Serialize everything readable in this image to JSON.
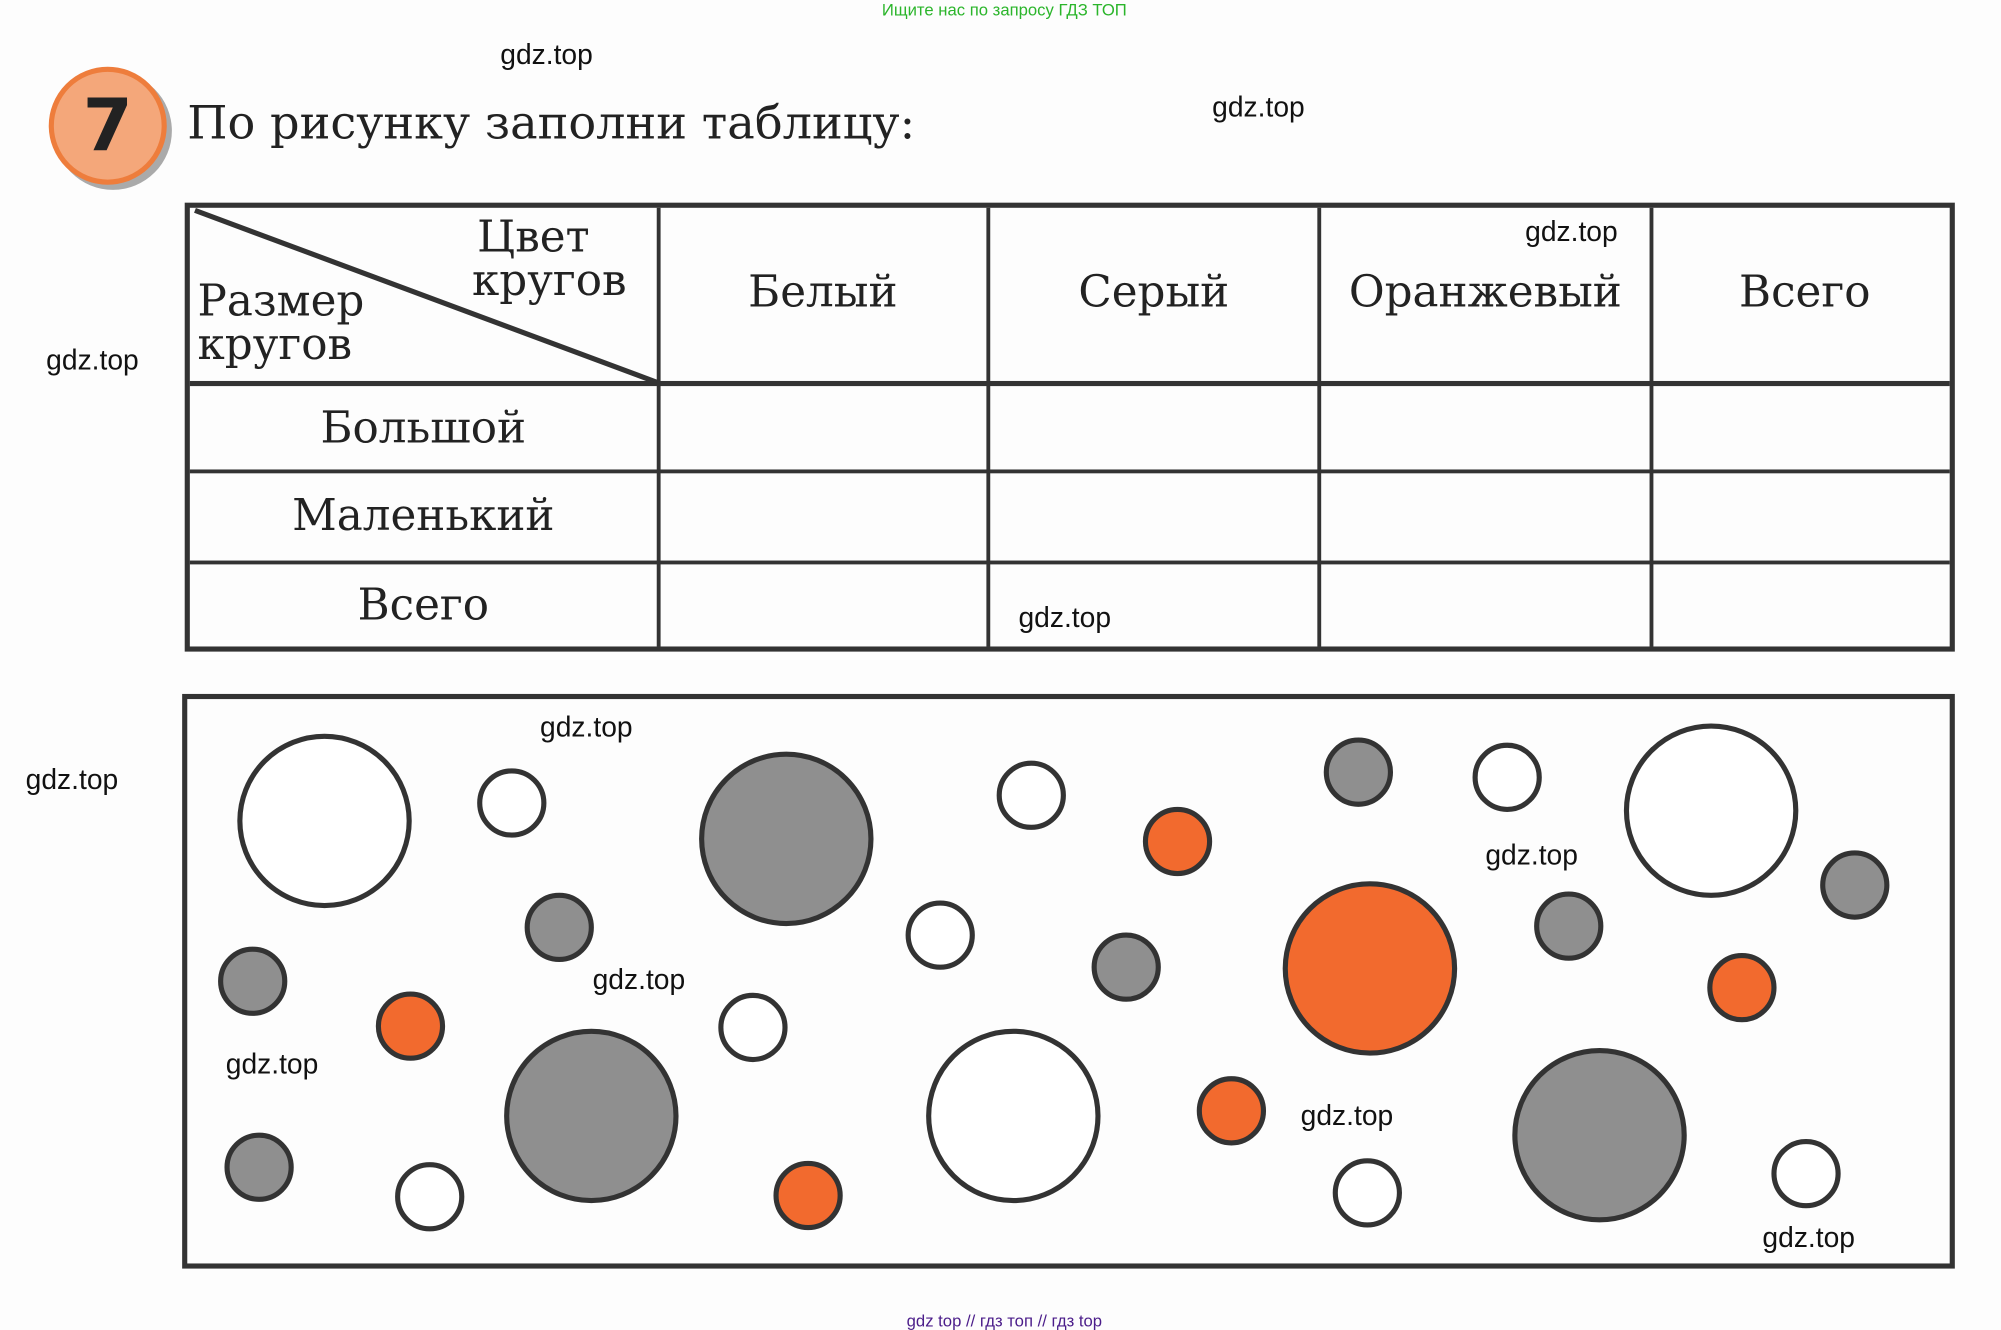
{
  "top_note": "Ищите нас по запросу ГДЗ ТОП",
  "bottom_note": "gdz top  //  гдз топ  //  гдз top",
  "task_number": "7",
  "task_title": "По рисунку заполни таблицу:",
  "watermark": "gdz.top",
  "table": {
    "corner_top": [
      "Цвет",
      "кругов"
    ],
    "corner_bottom": [
      "Размер",
      "кругов"
    ],
    "columns": [
      "Белый",
      "Серый",
      "Оранжевый",
      "Всего"
    ],
    "rows": [
      "Большой",
      "Маленький",
      "Всего"
    ]
  },
  "colors": {
    "white": "#ffffff",
    "gray": "#8f8f8f",
    "orange": "#f26a2e",
    "outline": "#333333"
  },
  "circles": [
    {
      "size": "large",
      "color": "white"
    },
    {
      "size": "small",
      "color": "white"
    },
    {
      "size": "large",
      "color": "gray"
    },
    {
      "size": "small",
      "color": "white"
    },
    {
      "size": "small",
      "color": "orange"
    },
    {
      "size": "small",
      "color": "gray"
    },
    {
      "size": "small",
      "color": "white"
    },
    {
      "size": "large",
      "color": "white"
    },
    {
      "size": "small",
      "color": "gray"
    },
    {
      "size": "small",
      "color": "gray"
    },
    {
      "size": "small",
      "color": "white"
    },
    {
      "size": "small",
      "color": "gray"
    },
    {
      "size": "large",
      "color": "orange"
    },
    {
      "size": "small",
      "color": "gray"
    },
    {
      "size": "small",
      "color": "orange"
    },
    {
      "size": "small",
      "color": "gray"
    },
    {
      "size": "small",
      "color": "orange"
    },
    {
      "size": "small",
      "color": "white"
    },
    {
      "size": "large",
      "color": "gray"
    },
    {
      "size": "large",
      "color": "white"
    },
    {
      "size": "small",
      "color": "orange"
    },
    {
      "size": "large",
      "color": "gray"
    },
    {
      "size": "small",
      "color": "gray"
    },
    {
      "size": "small",
      "color": "white"
    },
    {
      "size": "small",
      "color": "orange"
    },
    {
      "size": "small",
      "color": "white"
    },
    {
      "size": "small",
      "color": "white"
    }
  ]
}
